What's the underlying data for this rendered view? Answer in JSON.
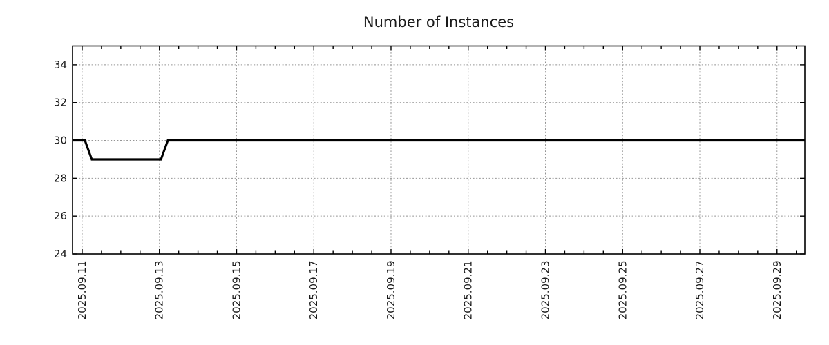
{
  "page": {
    "background": "#ffffff"
  },
  "chart_data": {
    "type": "line",
    "title": "Number of Instances",
    "legend": "none",
    "grid": true,
    "x_axis": {
      "unit": "date (September 2025, day-of-month)",
      "range_days": [
        10.75,
        29.72
      ],
      "major_ticks": [
        {
          "day": 11,
          "label": "2025.09.11"
        },
        {
          "day": 13,
          "label": "2025.09.13"
        },
        {
          "day": 15,
          "label": "2025.09.15"
        },
        {
          "day": 17,
          "label": "2025.09.17"
        },
        {
          "day": 19,
          "label": "2025.09.19"
        },
        {
          "day": 21,
          "label": "2025.09.21"
        },
        {
          "day": 23,
          "label": "2025.09.23"
        },
        {
          "day": 25,
          "label": "2025.09.25"
        },
        {
          "day": 27,
          "label": "2025.09.27"
        },
        {
          "day": 29,
          "label": "2025.09.29"
        }
      ],
      "minor_tick_interval_days": 0.5,
      "grid": true
    },
    "y_axis": {
      "range": [
        24,
        35
      ],
      "ticks": [
        24,
        26,
        28,
        30,
        32,
        34
      ],
      "grid": true
    },
    "series": [
      {
        "name": "instances",
        "color": "#000000",
        "line_width": 3.2,
        "points": [
          [
            10.75,
            30
          ],
          [
            11.07,
            30
          ],
          [
            11.25,
            29
          ],
          [
            13.04,
            29
          ],
          [
            13.22,
            30
          ],
          [
            29.72,
            30
          ]
        ]
      }
    ],
    "colors": {
      "background": "#ffffff",
      "axis": "#000000",
      "grid": "#949494",
      "text": "#1a1a1a",
      "line": "#000000"
    }
  }
}
